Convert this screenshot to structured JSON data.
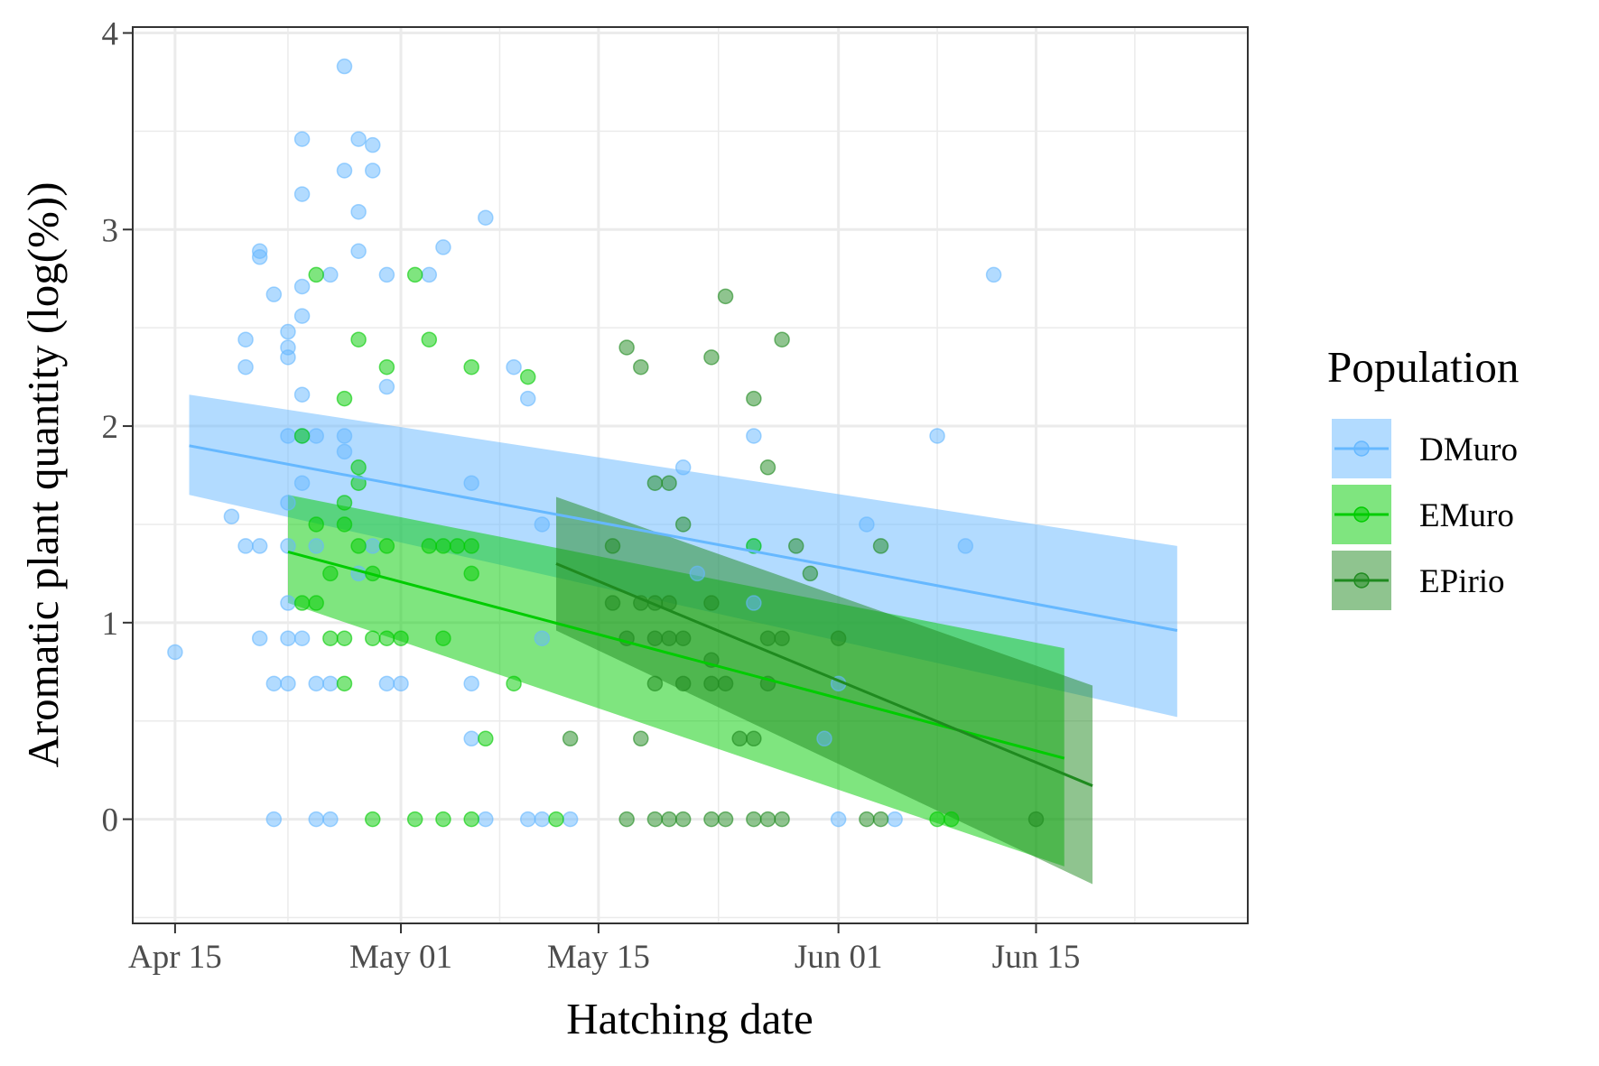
{
  "chart_data": {
    "type": "scatter",
    "xlabel": "Hatching date",
    "ylabel": "Aromatic plant quantity (log(%))",
    "x_ticks": [
      "Apr 15",
      "May 01",
      "May 15",
      "Jun 01",
      "Jun 15"
    ],
    "y_ticks": [
      "0",
      "1",
      "2",
      "3",
      "4"
    ],
    "xlim": [
      "2021-04-12",
      "2021-06-30"
    ],
    "ylim": [
      -0.53,
      4.03
    ],
    "grid": true,
    "legend": {
      "title": "Population",
      "position": "right"
    },
    "series": [
      {
        "name": "DMuro",
        "color": "#66b8ff",
        "points": [
          [
            "2021-04-15",
            0.85
          ],
          [
            "2021-04-19",
            1.54
          ],
          [
            "2021-04-20",
            1.39
          ],
          [
            "2021-04-21",
            1.39
          ],
          [
            "2021-04-21",
            2.89
          ],
          [
            "2021-04-21",
            2.86
          ],
          [
            "2021-04-21",
            0.92
          ],
          [
            "2021-04-22",
            2.67
          ],
          [
            "2021-04-22",
            0.69
          ],
          [
            "2021-04-22",
            0.0
          ],
          [
            "2021-04-20",
            2.44
          ],
          [
            "2021-04-20",
            2.3
          ],
          [
            "2021-04-23",
            2.48
          ],
          [
            "2021-04-23",
            2.4
          ],
          [
            "2021-04-23",
            2.35
          ],
          [
            "2021-04-23",
            1.95
          ],
          [
            "2021-04-23",
            1.61
          ],
          [
            "2021-04-23",
            1.39
          ],
          [
            "2021-04-23",
            1.1
          ],
          [
            "2021-04-23",
            0.92
          ],
          [
            "2021-04-23",
            0.69
          ],
          [
            "2021-04-24",
            3.46
          ],
          [
            "2021-04-24",
            3.18
          ],
          [
            "2021-04-24",
            2.71
          ],
          [
            "2021-04-24",
            2.56
          ],
          [
            "2021-04-24",
            2.16
          ],
          [
            "2021-04-24",
            1.71
          ],
          [
            "2021-04-24",
            1.95
          ],
          [
            "2021-04-24",
            0.92
          ],
          [
            "2021-04-25",
            1.95
          ],
          [
            "2021-04-25",
            1.39
          ],
          [
            "2021-04-25",
            0.69
          ],
          [
            "2021-04-25",
            0.0
          ],
          [
            "2021-04-26",
            2.77
          ],
          [
            "2021-04-26",
            0.69
          ],
          [
            "2021-04-26",
            0.0
          ],
          [
            "2021-04-27",
            3.83
          ],
          [
            "2021-04-27",
            3.3
          ],
          [
            "2021-04-27",
            1.95
          ],
          [
            "2021-04-27",
            1.87
          ],
          [
            "2021-04-28",
            3.46
          ],
          [
            "2021-04-28",
            3.09
          ],
          [
            "2021-04-28",
            2.89
          ],
          [
            "2021-04-28",
            1.25
          ],
          [
            "2021-04-29",
            3.43
          ],
          [
            "2021-04-29",
            3.3
          ],
          [
            "2021-04-29",
            1.39
          ],
          [
            "2021-04-30",
            2.77
          ],
          [
            "2021-04-30",
            2.2
          ],
          [
            "2021-04-30",
            0.69
          ],
          [
            "2021-05-01",
            0.69
          ],
          [
            "2021-05-03",
            2.77
          ],
          [
            "2021-05-04",
            2.91
          ],
          [
            "2021-05-06",
            1.71
          ],
          [
            "2021-05-06",
            0.69
          ],
          [
            "2021-05-06",
            0.41
          ],
          [
            "2021-05-07",
            3.06
          ],
          [
            "2021-05-07",
            0.0
          ],
          [
            "2021-05-09",
            2.3
          ],
          [
            "2021-05-10",
            2.14
          ],
          [
            "2021-05-10",
            0.0
          ],
          [
            "2021-05-11",
            1.5
          ],
          [
            "2021-05-11",
            0.92
          ],
          [
            "2021-05-11",
            0.0
          ],
          [
            "2021-05-13",
            0.0
          ],
          [
            "2021-05-21",
            1.79
          ],
          [
            "2021-05-22",
            1.25
          ],
          [
            "2021-05-26",
            1.95
          ],
          [
            "2021-05-26",
            1.39
          ],
          [
            "2021-05-26",
            1.1
          ],
          [
            "2021-05-31",
            0.41
          ],
          [
            "2021-06-01",
            0.69
          ],
          [
            "2021-06-01",
            0.0
          ],
          [
            "2021-06-03",
            1.5
          ],
          [
            "2021-06-05",
            0.0
          ],
          [
            "2021-06-08",
            1.95
          ],
          [
            "2021-06-10",
            1.39
          ],
          [
            "2021-06-12",
            2.77
          ]
        ],
        "fit": {
          "x": [
            "2021-04-16",
            "2021-06-25"
          ],
          "y": [
            1.9,
            0.96
          ],
          "lower": [
            1.65,
            0.52
          ],
          "upper": [
            2.16,
            1.39
          ]
        }
      },
      {
        "name": "EMuro",
        "color": "#00cc00",
        "points": [
          [
            "2021-04-24",
            1.95
          ],
          [
            "2021-04-24",
            1.1
          ],
          [
            "2021-04-25",
            2.77
          ],
          [
            "2021-04-25",
            1.5
          ],
          [
            "2021-04-25",
            1.1
          ],
          [
            "2021-04-26",
            1.25
          ],
          [
            "2021-04-26",
            0.92
          ],
          [
            "2021-04-27",
            2.14
          ],
          [
            "2021-04-27",
            1.61
          ],
          [
            "2021-04-27",
            1.5
          ],
          [
            "2021-04-27",
            0.92
          ],
          [
            "2021-04-27",
            0.69
          ],
          [
            "2021-04-28",
            2.44
          ],
          [
            "2021-04-28",
            1.79
          ],
          [
            "2021-04-28",
            1.71
          ],
          [
            "2021-04-28",
            1.39
          ],
          [
            "2021-04-29",
            1.25
          ],
          [
            "2021-04-29",
            0.92
          ],
          [
            "2021-04-29",
            0.0
          ],
          [
            "2021-04-30",
            2.3
          ],
          [
            "2021-04-30",
            1.39
          ],
          [
            "2021-04-30",
            0.92
          ],
          [
            "2021-05-01",
            0.92
          ],
          [
            "2021-05-02",
            2.77
          ],
          [
            "2021-05-02",
            0.0
          ],
          [
            "2021-05-03",
            2.44
          ],
          [
            "2021-05-03",
            1.39
          ],
          [
            "2021-05-04",
            1.39
          ],
          [
            "2021-05-04",
            0.92
          ],
          [
            "2021-05-04",
            0.0
          ],
          [
            "2021-05-05",
            1.39
          ],
          [
            "2021-05-06",
            2.3
          ],
          [
            "2021-05-06",
            1.39
          ],
          [
            "2021-05-06",
            1.25
          ],
          [
            "2021-05-06",
            0.0
          ],
          [
            "2021-05-07",
            0.41
          ],
          [
            "2021-05-09",
            0.69
          ],
          [
            "2021-05-10",
            2.25
          ],
          [
            "2021-05-12",
            0.0
          ],
          [
            "2021-05-26",
            1.39
          ],
          [
            "2021-06-08",
            0.0
          ],
          [
            "2021-06-09",
            0.0
          ]
        ],
        "fit": {
          "x": [
            "2021-04-23",
            "2021-06-17"
          ],
          "y": [
            1.36,
            0.31
          ],
          "lower": [
            1.1,
            -0.24
          ],
          "upper": [
            1.65,
            0.87
          ]
        }
      },
      {
        "name": "EPirio",
        "color": "#1f8a1f",
        "points": [
          [
            "2021-05-13",
            0.41
          ],
          [
            "2021-05-16",
            1.39
          ],
          [
            "2021-05-16",
            1.1
          ],
          [
            "2021-05-17",
            2.4
          ],
          [
            "2021-05-17",
            0.92
          ],
          [
            "2021-05-17",
            0.0
          ],
          [
            "2021-05-18",
            2.3
          ],
          [
            "2021-05-18",
            1.1
          ],
          [
            "2021-05-18",
            0.41
          ],
          [
            "2021-05-19",
            1.71
          ],
          [
            "2021-05-19",
            1.1
          ],
          [
            "2021-05-19",
            0.92
          ],
          [
            "2021-05-19",
            0.69
          ],
          [
            "2021-05-19",
            0.0
          ],
          [
            "2021-05-20",
            1.71
          ],
          [
            "2021-05-20",
            1.1
          ],
          [
            "2021-05-20",
            0.92
          ],
          [
            "2021-05-20",
            0.0
          ],
          [
            "2021-05-21",
            1.5
          ],
          [
            "2021-05-21",
            0.92
          ],
          [
            "2021-05-21",
            0.69
          ],
          [
            "2021-05-21",
            0.0
          ],
          [
            "2021-05-23",
            2.35
          ],
          [
            "2021-05-23",
            1.1
          ],
          [
            "2021-05-23",
            0.81
          ],
          [
            "2021-05-23",
            0.69
          ],
          [
            "2021-05-23",
            0.0
          ],
          [
            "2021-05-24",
            2.66
          ],
          [
            "2021-05-24",
            0.69
          ],
          [
            "2021-05-24",
            0.0
          ],
          [
            "2021-05-25",
            0.41
          ],
          [
            "2021-05-26",
            2.14
          ],
          [
            "2021-05-26",
            0.41
          ],
          [
            "2021-05-26",
            0.0
          ],
          [
            "2021-05-27",
            1.79
          ],
          [
            "2021-05-27",
            0.92
          ],
          [
            "2021-05-27",
            0.69
          ],
          [
            "2021-05-27",
            0.0
          ],
          [
            "2021-05-28",
            2.44
          ],
          [
            "2021-05-28",
            0.92
          ],
          [
            "2021-05-28",
            0.0
          ],
          [
            "2021-05-29",
            1.39
          ],
          [
            "2021-05-30",
            1.25
          ],
          [
            "2021-06-01",
            0.92
          ],
          [
            "2021-06-03",
            0.0
          ],
          [
            "2021-06-04",
            0.0
          ],
          [
            "2021-06-04",
            1.39
          ],
          [
            "2021-06-15",
            0.0
          ]
        ],
        "fit": {
          "x": [
            "2021-05-12",
            "2021-06-19"
          ],
          "y": [
            1.3,
            0.17
          ],
          "lower": [
            0.96,
            -0.33
          ],
          "upper": [
            1.64,
            0.68
          ]
        }
      }
    ]
  }
}
